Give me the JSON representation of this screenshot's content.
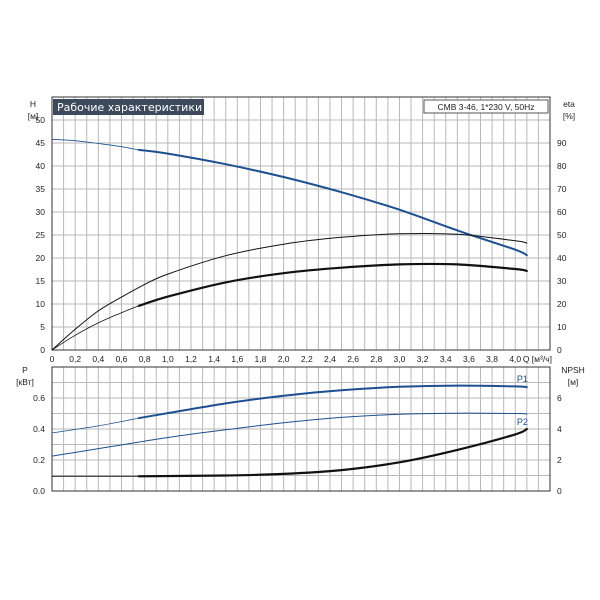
{
  "chart_data": [
    {
      "type": "line",
      "title": "Рабочие характеристики",
      "info": "CMB 3-46, 1*230 V, 50Hz",
      "xlabel": "Q [м³/ч]",
      "x_ticks": [
        "0",
        "0,2",
        "0,4",
        "0,6",
        "0,8",
        "1,0",
        "1,2",
        "1,4",
        "1,6",
        "1,8",
        "2,0",
        "2,2",
        "2,4",
        "2,6",
        "2,8",
        "3,0",
        "3,2",
        "3,4",
        "3,6",
        "3,8",
        "4,0"
      ],
      "xlim": [
        0,
        4.3
      ],
      "y_left": {
        "label": "H",
        "unit": "[м]",
        "ticks": [
          "0",
          "5",
          "10",
          "15",
          "20",
          "25",
          "30",
          "35",
          "40",
          "45",
          "50"
        ],
        "lim": [
          0,
          55
        ]
      },
      "y_right": {
        "label": "eta",
        "unit": "[%]",
        "ticks": [
          "0",
          "10",
          "20",
          "30",
          "40",
          "50",
          "60",
          "70",
          "80",
          "90"
        ],
        "lim": [
          0,
          110
        ]
      },
      "series": [
        {
          "axis": "left",
          "color": "#1d4f91",
          "width": 2,
          "thin": {
            "x": [
              0,
              0.2,
              0.4,
              0.6,
              0.75
            ],
            "y": [
              45.8,
              45.5,
              44.9,
              44.2,
              43.5
            ]
          },
          "bold": {
            "x": [
              0.75,
              1.0,
              1.5,
              2.0,
              2.5,
              3.0,
              3.5,
              4.0,
              4.1
            ],
            "y": [
              43.5,
              42.7,
              40.4,
              37.6,
              34.3,
              30.5,
              26.0,
              21.8,
              20.6
            ]
          }
        },
        {
          "axis": "right",
          "color": "#111111",
          "width": 1,
          "thin": {
            "x": [
              0,
              0.2,
              0.4,
              0.6,
              0.8,
              1.0,
              1.5,
              2.0,
              2.5,
              3.0,
              3.5,
              4.0,
              4.1
            ],
            "y": [
              0,
              9,
              17,
              23,
              28.5,
              33,
              41,
              46,
              49,
              50.5,
              50.3,
              47.5,
              46.5
            ]
          }
        },
        {
          "axis": "left",
          "color": "#111111",
          "width": 2.2,
          "thin": {
            "x": [
              0,
              0.2,
              0.4,
              0.6,
              0.75
            ],
            "y": [
              0,
              3.2,
              5.9,
              8.1,
              9.6
            ]
          },
          "bold": {
            "x": [
              0.75,
              1.0,
              1.5,
              2.0,
              2.5,
              3.0,
              3.5,
              4.0,
              4.1
            ],
            "y": [
              9.6,
              11.6,
              14.7,
              16.7,
              17.9,
              18.6,
              18.6,
              17.6,
              17.2
            ]
          }
        }
      ]
    },
    {
      "type": "line",
      "xlim": [
        0,
        4.3
      ],
      "y_left": {
        "label": "P",
        "unit": "[кВт]",
        "ticks": [
          "0.0",
          "0.2",
          "0.4",
          "0.6"
        ],
        "lim": [
          0,
          0.8
        ]
      },
      "y_right": {
        "label": "NPSH",
        "unit": "[м]",
        "ticks": [
          "0",
          "2",
          "4",
          "6"
        ],
        "lim": [
          0,
          8
        ]
      },
      "series": [
        {
          "name": "P1",
          "axis": "left",
          "color": "#1d4f91",
          "width": 2,
          "thin": {
            "x": [
              0,
              0.4,
              0.75
            ],
            "y": [
              0.375,
              0.42,
              0.47
            ]
          },
          "bold": {
            "x": [
              0.75,
              1.5,
              2.0,
              2.5,
              3.0,
              3.5,
              4.0,
              4.1
            ],
            "y": [
              0.47,
              0.565,
              0.615,
              0.65,
              0.672,
              0.68,
              0.675,
              0.67
            ]
          }
        },
        {
          "name": "P2",
          "axis": "left",
          "color": "#1d4f91",
          "width": 1,
          "thin": {
            "x": [
              0,
              0.5,
              1.0,
              1.5,
              2.0,
              2.5,
              3.0,
              3.5,
              4.0,
              4.1
            ],
            "y": [
              0.225,
              0.285,
              0.345,
              0.395,
              0.44,
              0.475,
              0.495,
              0.502,
              0.5,
              0.497
            ]
          }
        },
        {
          "axis": "right",
          "color": "#111111",
          "width": 2.2,
          "thin": {
            "x": [
              0,
              0.75
            ],
            "y": [
              0.95,
              0.95
            ]
          },
          "bold": {
            "x": [
              0.75,
              1.5,
              2.0,
              2.5,
              3.0,
              3.5,
              4.0,
              4.1
            ],
            "y": [
              0.95,
              1.0,
              1.1,
              1.35,
              1.85,
              2.65,
              3.65,
              4.0
            ]
          }
        }
      ]
    }
  ]
}
